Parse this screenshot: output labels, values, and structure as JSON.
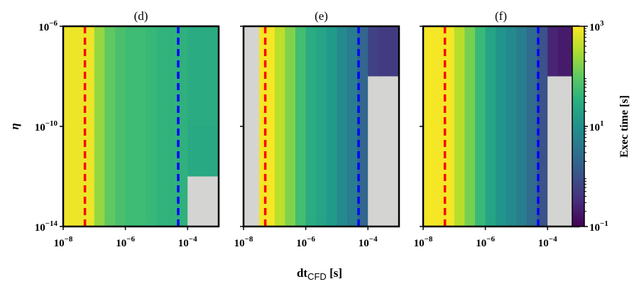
{
  "chart_data": {
    "type": "heatmap",
    "xlabel": "dt",
    "xlabel_sub": "CFD",
    "xlabel_unit": " [s]",
    "ylabel": "η",
    "x_scale": "log",
    "y_scale": "log",
    "xlim": [
      1e-08,
      0.001
    ],
    "ylim": [
      1e-14,
      1e-06
    ],
    "x_ticks": [
      {
        "value": 1e-08,
        "base": "10",
        "exp": "−8"
      },
      {
        "value": 1e-06,
        "base": "10",
        "exp": "−6"
      },
      {
        "value": 0.0001,
        "base": "10",
        "exp": "−4"
      }
    ],
    "y_ticks": [
      {
        "value": 1e-06,
        "base": "10",
        "exp": "−6"
      },
      {
        "value": 1e-10,
        "base": "10",
        "exp": "−10"
      },
      {
        "value": 1e-14,
        "base": "10",
        "exp": "−14"
      }
    ],
    "x_edges": [
      1e-08,
      3.16e-08,
      1e-07,
      2.15e-07,
      4.64e-07,
      1e-06,
      2.15e-06,
      4.64e-06,
      1e-05,
      2.15e-05,
      4.64e-05,
      0.0001,
      0.000215,
      0.001
    ],
    "y_edges": [
      1e-14,
      1e-12,
      1e-10,
      1e-08,
      1e-06
    ],
    "missing_color": "#d4d4d2",
    "reference_lines": [
      {
        "x": 5e-08,
        "color": "#ff0000",
        "style": "dashed"
      },
      {
        "x": 5e-05,
        "color": "#0000ff",
        "style": "dashed"
      }
    ],
    "colorbar": {
      "label": "Exec time [s]",
      "scale": "log",
      "range": [
        0.1,
        1000
      ],
      "colormap": "viridis",
      "ticks": [
        {
          "value": 0.1,
          "base": "10",
          "exp": "−1"
        },
        {
          "value": 10,
          "base": "10",
          "exp": "1"
        },
        {
          "value": 1000,
          "base": "10",
          "exp": "3"
        }
      ]
    },
    "panels": [
      {
        "title": "(d)",
        "values": [
          [
            800,
            800,
            230,
            100,
            70,
            55,
            55,
            48,
            40,
            38,
            35,
            28,
            28
          ],
          [
            800,
            800,
            230,
            100,
            70,
            55,
            55,
            48,
            40,
            38,
            35,
            28,
            28
          ],
          [
            800,
            800,
            230,
            100,
            70,
            55,
            55,
            48,
            40,
            38,
            35,
            25,
            25
          ],
          [
            800,
            800,
            230,
            100,
            70,
            55,
            55,
            48,
            40,
            38,
            35,
            null,
            null
          ]
        ]
      },
      {
        "title": "(e)",
        "values": [
          [
            null,
            900,
            400,
            170,
            60,
            28,
            22,
            15,
            8,
            5,
            2,
            0.6,
            0.5
          ],
          [
            null,
            900,
            400,
            170,
            60,
            28,
            22,
            15,
            8,
            5,
            2,
            null,
            null
          ],
          [
            null,
            900,
            400,
            170,
            60,
            28,
            22,
            15,
            8,
            5,
            2,
            null,
            null
          ],
          [
            null,
            900,
            400,
            170,
            60,
            28,
            22,
            15,
            8,
            5,
            2,
            null,
            null
          ]
        ]
      },
      {
        "title": "(f)",
        "values": [
          [
            900,
            900,
            380,
            150,
            50,
            22,
            12,
            8,
            5,
            2.5,
            1,
            0.25,
            0.2
          ],
          [
            900,
            900,
            380,
            150,
            50,
            22,
            12,
            8,
            5,
            2.5,
            1,
            null,
            null
          ],
          [
            900,
            900,
            380,
            150,
            50,
            22,
            12,
            8,
            5,
            2.5,
            1,
            null,
            null
          ],
          [
            900,
            900,
            380,
            150,
            50,
            22,
            12,
            8,
            5,
            2.5,
            1,
            null,
            null
          ]
        ]
      }
    ]
  }
}
